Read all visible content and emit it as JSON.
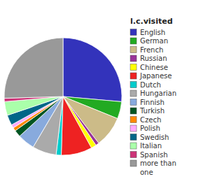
{
  "chart_data": {
    "type": "pie",
    "legend_title": "l.c.visited",
    "categories": [
      "English",
      "German",
      "French",
      "Russian",
      "Chinese",
      "Japanese",
      "Dutch",
      "Hungarian",
      "Finnish",
      "Turkish",
      "Czech",
      "Polish",
      "Swedish",
      "Italian",
      "Spanish",
      "more than\none"
    ],
    "values": [
      28,
      5,
      9,
      1,
      1.5,
      9,
      1.5,
      7,
      5,
      2,
      1,
      1,
      3,
      4,
      1,
      27
    ],
    "colors": [
      "#3333bb",
      "#22aa22",
      "#ccbb88",
      "#993399",
      "#ffff00",
      "#ee2222",
      "#00cccc",
      "#aaaaaa",
      "#88aadd",
      "#005522",
      "#ff8800",
      "#ffaaff",
      "#006688",
      "#aaffaa",
      "#cc3377",
      "#999999"
    ],
    "legend": "right"
  }
}
